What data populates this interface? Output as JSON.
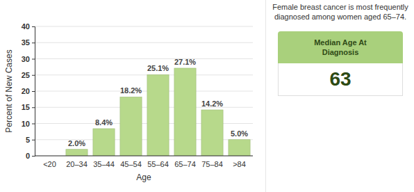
{
  "chart_data": {
    "type": "bar",
    "categories": [
      "<20",
      "20–34",
      "35–44",
      "45–54",
      "55–64",
      "65–74",
      "75–84",
      ">84"
    ],
    "values": [
      null,
      2.0,
      8.4,
      18.2,
      25.1,
      27.1,
      14.2,
      5.0
    ],
    "value_labels": [
      null,
      "2.0%",
      "8.4%",
      "18.2%",
      "25.1%",
      "27.1%",
      "14.2%",
      "5.0%"
    ],
    "data_labels": true,
    "color": "#b7d98b",
    "x_label": "Age",
    "y_label": "Percent of New Cases",
    "ylim": [
      0,
      40
    ],
    "yticks": [
      0,
      5,
      10,
      15,
      20,
      25,
      30,
      35,
      40
    ],
    "grid": true,
    "annotations": [
      "Female breast cancer is most frequently diagnosed among women aged 65–74."
    ],
    "median": {
      "label": "Median Age At Diagnosis",
      "value": 63
    }
  }
}
